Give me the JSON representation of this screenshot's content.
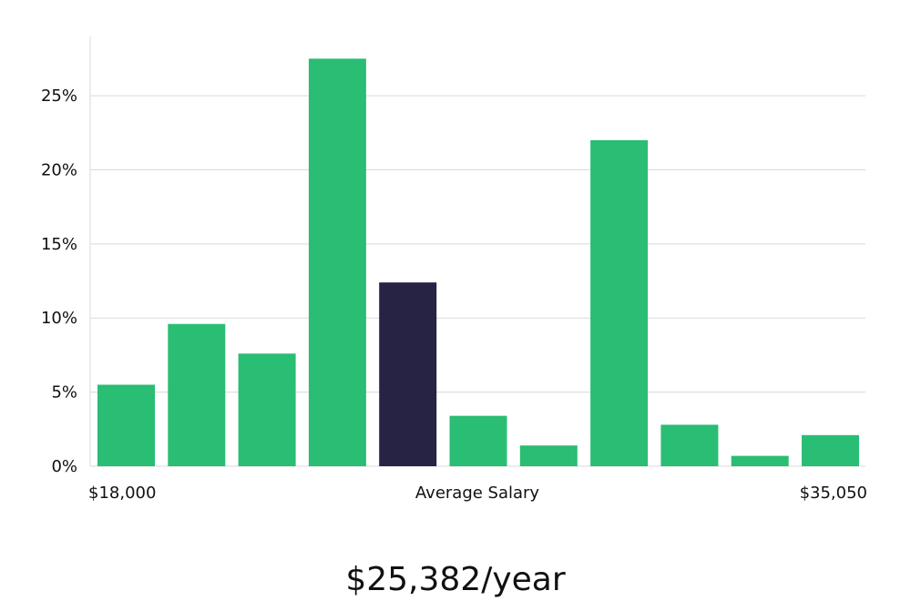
{
  "chart_data": {
    "type": "bar",
    "title": "",
    "xlabel": "Average Salary",
    "ylabel": "",
    "x_start_label": "$18,000",
    "x_end_label": "$35,050",
    "ylim": [
      0,
      29
    ],
    "yticks": [
      "0%",
      "5%",
      "10%",
      "15%",
      "20%",
      "25%"
    ],
    "ytick_values": [
      0,
      5,
      10,
      15,
      20,
      25
    ],
    "values": [
      5.5,
      9.6,
      7.6,
      27.5,
      12.4,
      3.4,
      1.4,
      22.0,
      2.8,
      0.7,
      2.1
    ],
    "highlight_index": 4,
    "grid": true
  },
  "salary_summary": "$25,382/year",
  "colors": {
    "bar": "#2abd74",
    "highlight": "#262345",
    "grid": "#dadada",
    "axis": "#dadada"
  }
}
